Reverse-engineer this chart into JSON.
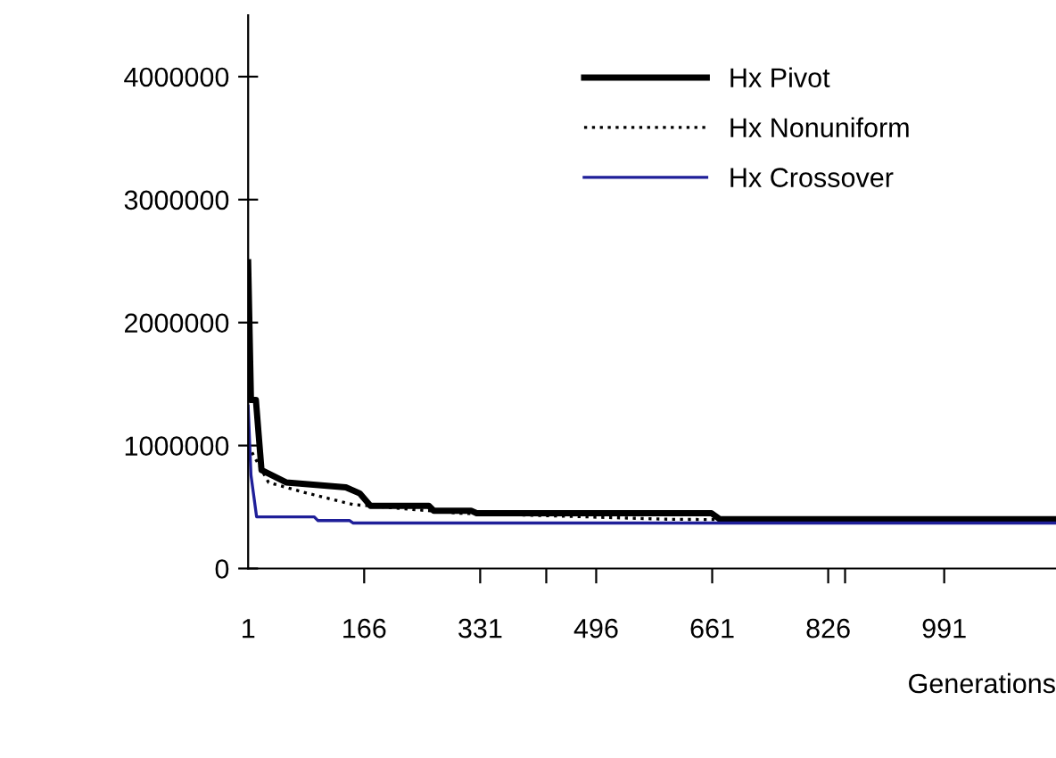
{
  "chart_data": {
    "type": "line",
    "xlabel": "Generations",
    "series": [
      {
        "name": "Hx Pivot",
        "color": "#000000",
        "line_style": "solid",
        "x": [
          1,
          5,
          12,
          20,
          55,
          140,
          160,
          175,
          258,
          265,
          318,
          326,
          660,
          672,
          1150
        ],
        "values": [
          2490000,
          1370000,
          1370000,
          800000,
          700000,
          660000,
          610000,
          510000,
          510000,
          470000,
          470000,
          450000,
          450000,
          400000,
          400000
        ]
      },
      {
        "name": "Hx Nonuniform",
        "color": "#000000",
        "line_style": "dotted",
        "x": [
          1,
          30,
          80,
          150,
          300,
          600,
          1150
        ],
        "values": [
          1000000,
          700000,
          620000,
          520000,
          450000,
          400000,
          380000
        ]
      },
      {
        "name": "Hx Crossover",
        "color": "#1f1f99",
        "line_style": "solid",
        "x": [
          1,
          5,
          13,
          95,
          100,
          145,
          150,
          1150
        ],
        "values": [
          1320000,
          760000,
          420000,
          420000,
          390000,
          390000,
          370000,
          370000
        ]
      }
    ],
    "xlim": [
      1,
      1150
    ],
    "ylim": [
      0,
      4500000
    ],
    "xticks": [
      1,
      166,
      331,
      496,
      661,
      826,
      991,
      {
        "value": 425,
        "label": null
      },
      {
        "value": 850,
        "label": null
      }
    ],
    "yticks": [
      0,
      1000000,
      2000000,
      3000000,
      4000000
    ],
    "grid": false,
    "legend": "top right"
  }
}
